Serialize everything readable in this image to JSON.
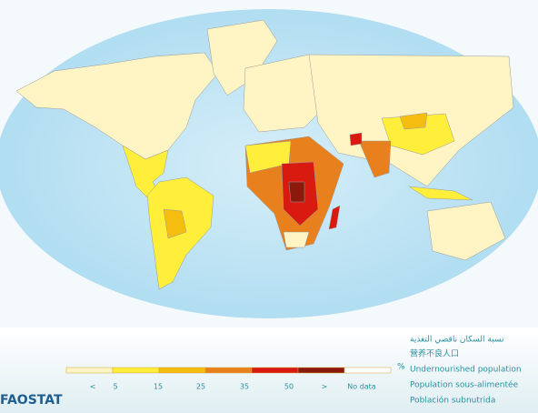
{
  "legend": {
    "unit": "%",
    "ticks": [
      "<",
      "5",
      "15",
      "25",
      "35",
      "50",
      ">",
      "No data"
    ],
    "colors": [
      "#fff4c4",
      "#ffee3a",
      "#f5bd10",
      "#e9801e",
      "#d81a10",
      "#8a1a0c",
      "#ffffff"
    ]
  },
  "titles": [
    "نسبة السكان ناقصي التغذية",
    "营养不良人口",
    "Undernourished population",
    "Population sous-alimentée",
    "Población subnutrida"
  ],
  "logo": "FAOSTAT"
}
